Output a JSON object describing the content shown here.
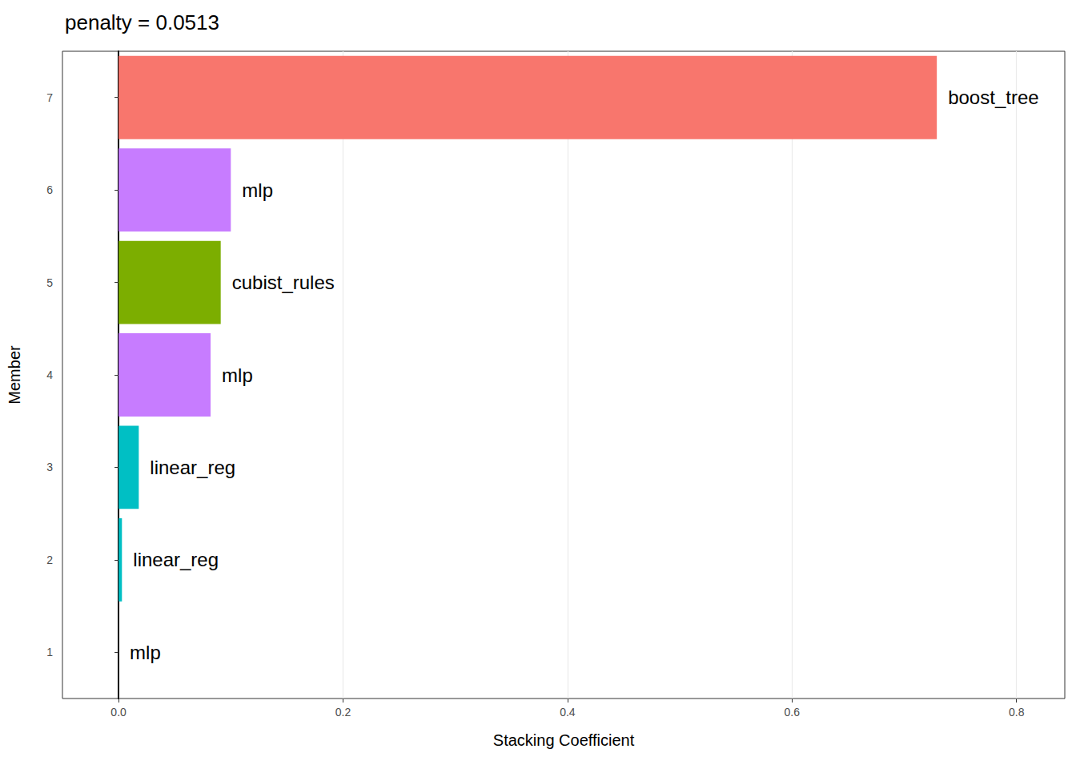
{
  "chart_data": {
    "type": "bar",
    "title": "penalty = 0.0513",
    "orientation": "horizontal",
    "x_label": "Stacking Coefficient",
    "y_label": "Member",
    "categories": [
      "1",
      "2",
      "3",
      "4",
      "5",
      "6",
      "7"
    ],
    "values": [
      0,
      0.003,
      0.018,
      0.082,
      0.091,
      0.1,
      0.729
    ],
    "annotations": [
      "mlp",
      "linear_reg",
      "linear_reg",
      "mlp",
      "cubist_rules",
      "mlp",
      "boost_tree"
    ],
    "colors": [
      "#C77CFF",
      "#00BFC4",
      "#00BFC4",
      "#C77CFF",
      "#7CAE00",
      "#C77CFF",
      "#F8766D"
    ],
    "xlim": [
      -0.05,
      0.843
    ],
    "xticks": [
      {
        "value": 0,
        "label": "0.0"
      },
      0.2,
      0.4,
      0.6,
      0.8
    ],
    "grid": true,
    "data_labels": false
  }
}
